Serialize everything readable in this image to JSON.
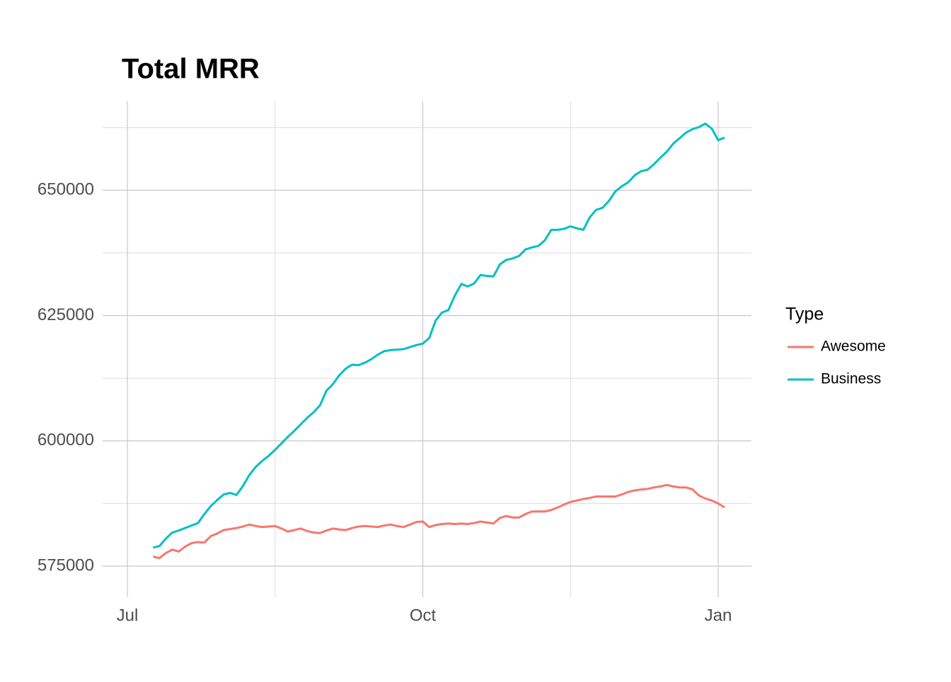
{
  "chart_data": {
    "type": "line",
    "title": "Total MRR",
    "legend_title": "Type",
    "legend_position": "right",
    "grid": true,
    "categories": [
      "Jul",
      null,
      null,
      null,
      null,
      null,
      null,
      null,
      null,
      null,
      null,
      null,
      null,
      null,
      null,
      null,
      null,
      null,
      null,
      null,
      null,
      null,
      null,
      null,
      null,
      null,
      null,
      null,
      null,
      null,
      null,
      null,
      null,
      null,
      null,
      null,
      null,
      null,
      null,
      null,
      null,
      null,
      null,
      null,
      null,
      null,
      "Oct",
      null,
      null,
      null,
      null,
      null,
      null,
      null,
      null,
      null,
      null,
      null,
      null,
      null,
      null,
      null,
      null,
      null,
      null,
      null,
      null,
      null,
      null,
      null,
      null,
      null,
      null,
      null,
      null,
      null,
      null,
      null,
      null,
      null,
      null,
      null,
      null,
      null,
      null,
      null,
      null,
      null,
      null,
      null,
      null,
      null,
      "Jan",
      null
    ],
    "series": [
      {
        "name": "Awesome",
        "color": "#F8766D",
        "values": [
          null,
          null,
          null,
          null,
          576900,
          576600,
          577600,
          578300,
          577900,
          578900,
          579600,
          579800,
          579700,
          581000,
          581500,
          582200,
          582400,
          582600,
          582900,
          583300,
          583000,
          582800,
          582900,
          583000,
          582500,
          581900,
          582200,
          582500,
          582000,
          581700,
          581600,
          582100,
          582500,
          582300,
          582200,
          582600,
          582900,
          583000,
          582900,
          582800,
          583100,
          583300,
          583000,
          582800,
          583300,
          583800,
          583900,
          582800,
          583200,
          583400,
          583500,
          583400,
          583500,
          583400,
          583600,
          583900,
          583700,
          583500,
          584600,
          585000,
          584700,
          584700,
          585400,
          585900,
          585900,
          585900,
          586200,
          586700,
          587300,
          587800,
          588100,
          588400,
          588600,
          588900,
          588900,
          588900,
          588900,
          589300,
          589800,
          590100,
          590300,
          590400,
          590700,
          590900,
          591200,
          590900,
          590700,
          590700,
          590300,
          589100,
          588500,
          588100,
          587500,
          586700
        ]
      },
      {
        "name": "Business",
        "color": "#00BFC4",
        "values": [
          null,
          null,
          null,
          null,
          578700,
          579000,
          580500,
          581700,
          582100,
          582600,
          583100,
          583600,
          585400,
          587000,
          588200,
          589300,
          589600,
          589200,
          591000,
          593200,
          594800,
          596000,
          597000,
          598200,
          599500,
          600800,
          602000,
          603300,
          604600,
          605700,
          607100,
          610000,
          611300,
          613100,
          614400,
          615200,
          615100,
          615600,
          616300,
          617200,
          617900,
          618100,
          618200,
          618300,
          618700,
          619100,
          619400,
          620500,
          624000,
          625600,
          626100,
          629000,
          631300,
          630800,
          631400,
          633100,
          632900,
          632800,
          635200,
          636100,
          636400,
          636900,
          638200,
          638600,
          638900,
          640000,
          642100,
          642100,
          642300,
          642800,
          642400,
          642100,
          644600,
          646100,
          646500,
          647900,
          649800,
          650800,
          651600,
          653000,
          653800,
          654100,
          655200,
          656500,
          657700,
          659300,
          660400,
          661500,
          662200,
          662600,
          663300,
          662300,
          660000,
          660500
        ]
      }
    ],
    "ylim": [
      568800,
      667800
    ],
    "yticks": [
      575000,
      600000,
      625000,
      650000
    ]
  }
}
